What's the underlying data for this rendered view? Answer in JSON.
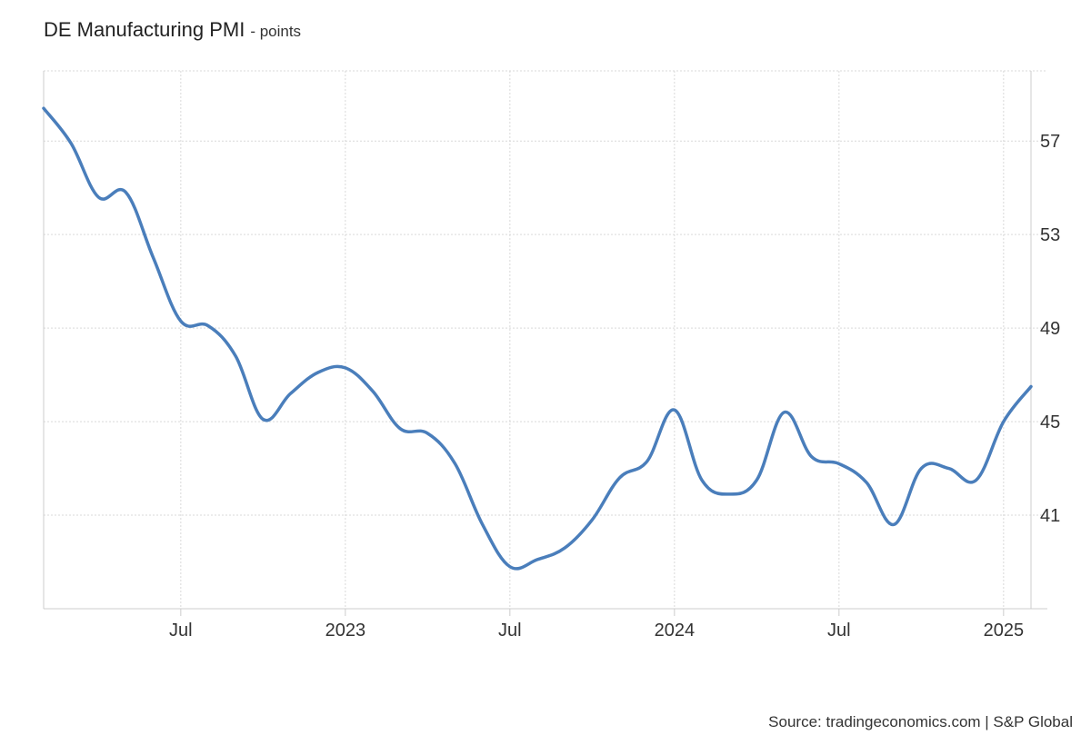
{
  "header": {
    "title": "DE Manufacturing PMI",
    "unit_suffix": "- points"
  },
  "footer": {
    "source": "Source: tradingeconomics.com | S&P Global"
  },
  "colors": {
    "line": "#4a7ebb",
    "grid": "#d9d9d9",
    "axis": "#cccccc",
    "text": "#333333"
  },
  "chart_data": {
    "type": "line",
    "title": "DE Manufacturing PMI",
    "ylabel": "points",
    "y_ticks": [
      41,
      45,
      49,
      53,
      57
    ],
    "ylim": [
      37,
      60
    ],
    "x_ticks": [
      {
        "label": "Jul",
        "date": "2022-07"
      },
      {
        "label": "2023",
        "date": "2023-01"
      },
      {
        "label": "Jul",
        "date": "2023-07"
      },
      {
        "label": "2024",
        "date": "2024-01"
      },
      {
        "label": "Jul",
        "date": "2024-07"
      },
      {
        "label": "2025",
        "date": "2025-01"
      }
    ],
    "xlim": [
      "2022-02",
      "2025-02"
    ],
    "grid": true,
    "series": [
      {
        "points": [
          {
            "date": "2022-02",
            "value": 58.4
          },
          {
            "date": "2022-03",
            "value": 56.9
          },
          {
            "date": "2022-04",
            "value": 54.6
          },
          {
            "date": "2022-05",
            "value": 54.8
          },
          {
            "date": "2022-06",
            "value": 52.0
          },
          {
            "date": "2022-07",
            "value": 49.3
          },
          {
            "date": "2022-08",
            "value": 49.1
          },
          {
            "date": "2022-09",
            "value": 47.8
          },
          {
            "date": "2022-10",
            "value": 45.1
          },
          {
            "date": "2022-11",
            "value": 46.2
          },
          {
            "date": "2022-12",
            "value": 47.1
          },
          {
            "date": "2023-01",
            "value": 47.3
          },
          {
            "date": "2023-02",
            "value": 46.3
          },
          {
            "date": "2023-03",
            "value": 44.7
          },
          {
            "date": "2023-04",
            "value": 44.5
          },
          {
            "date": "2023-05",
            "value": 43.2
          },
          {
            "date": "2023-06",
            "value": 40.6
          },
          {
            "date": "2023-07",
            "value": 38.8
          },
          {
            "date": "2023-08",
            "value": 39.1
          },
          {
            "date": "2023-09",
            "value": 39.6
          },
          {
            "date": "2023-10",
            "value": 40.8
          },
          {
            "date": "2023-11",
            "value": 42.6
          },
          {
            "date": "2023-12",
            "value": 43.3
          },
          {
            "date": "2024-01",
            "value": 45.5
          },
          {
            "date": "2024-02",
            "value": 42.5
          },
          {
            "date": "2024-03",
            "value": 41.9
          },
          {
            "date": "2024-04",
            "value": 42.5
          },
          {
            "date": "2024-05",
            "value": 45.4
          },
          {
            "date": "2024-06",
            "value": 43.5
          },
          {
            "date": "2024-07",
            "value": 43.2
          },
          {
            "date": "2024-08",
            "value": 42.4
          },
          {
            "date": "2024-09",
            "value": 40.6
          },
          {
            "date": "2024-10",
            "value": 43.0
          },
          {
            "date": "2024-11",
            "value": 43.0
          },
          {
            "date": "2024-12",
            "value": 42.5
          },
          {
            "date": "2025-01",
            "value": 45.0
          },
          {
            "date": "2025-02",
            "value": 46.5
          }
        ]
      }
    ]
  }
}
